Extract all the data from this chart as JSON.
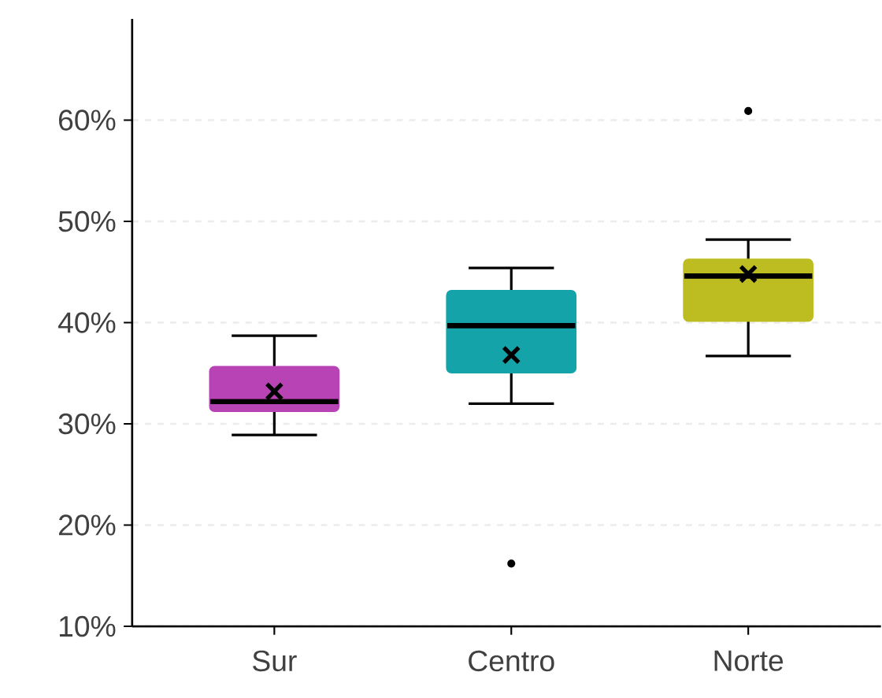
{
  "chart_data": {
    "type": "box",
    "categories": [
      "Sur",
      "Centro",
      "Norte"
    ],
    "colors": [
      "#b843b4",
      "#14a3a8",
      "#bdbd22"
    ],
    "boxes": [
      {
        "low": 28.9,
        "q1": 31.3,
        "median": 32.2,
        "q3": 35.6,
        "high": 38.7,
        "mean": 33.2
      },
      {
        "low": 32.0,
        "q1": 35.1,
        "median": 39.7,
        "q3": 43.1,
        "high": 45.4,
        "mean": 36.8,
        "outliers": [
          16.2
        ]
      },
      {
        "low": 36.7,
        "q1": 40.2,
        "median": 44.6,
        "q3": 46.2,
        "high": 48.2,
        "mean": 44.8,
        "outliers": [
          60.9
        ]
      }
    ],
    "ylim": [
      10,
      70
    ],
    "yticks": [
      {
        "value": 10,
        "label": "10%"
      },
      {
        "value": 20,
        "label": "20%"
      },
      {
        "value": 30,
        "label": "30%"
      },
      {
        "value": 40,
        "label": "40%"
      },
      {
        "value": 50,
        "label": "50%"
      },
      {
        "value": 60,
        "label": "60%"
      }
    ],
    "grid": "y",
    "marker": "cross"
  }
}
